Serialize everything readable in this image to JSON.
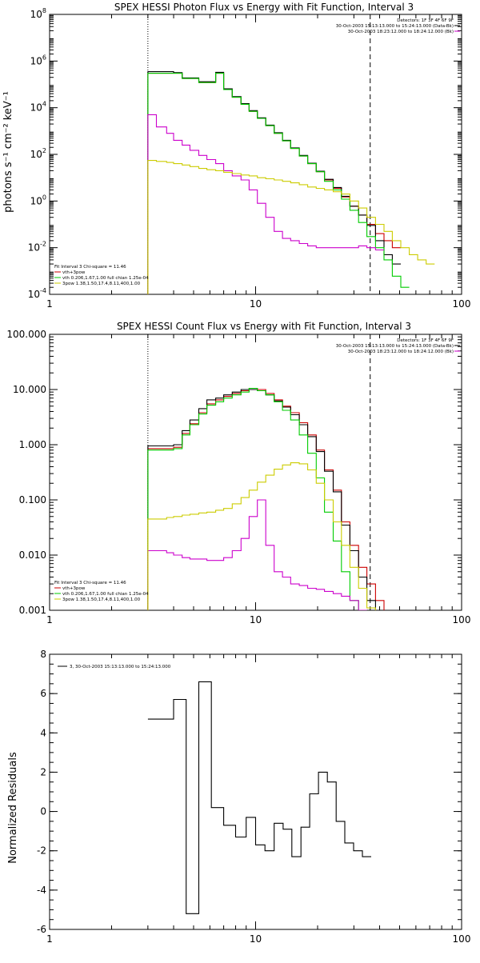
{
  "chart_data": [
    {
      "type": "line",
      "title": "SPEX HESSI Photon Flux vs Energy with Fit Function, Interval 3",
      "ylabel": "photons s⁻¹ cm⁻² keV⁻¹",
      "xlabel": "",
      "xscale": "log",
      "yscale": "log",
      "xlim": [
        1,
        100
      ],
      "ylim": [
        0.0001,
        100000000
      ],
      "xticks": [
        {
          "v": 1,
          "label": "1"
        },
        {
          "v": 10,
          "label": "10"
        },
        {
          "v": 100,
          "label": "100"
        }
      ],
      "yticks": [
        {
          "base": "10",
          "exp": "-4",
          "v": 0.0001
        },
        {
          "base": "10",
          "exp": "-2",
          "v": 0.01
        },
        {
          "base": "10",
          "exp": "0",
          "v": 1
        },
        {
          "base": "10",
          "exp": "2",
          "v": 100
        },
        {
          "base": "10",
          "exp": "4",
          "v": 10000
        },
        {
          "base": "10",
          "exp": "6",
          "v": 1000000
        },
        {
          "base": "10",
          "exp": "8",
          "v": 100000000
        }
      ],
      "vlines": [
        {
          "x": 3,
          "style": "dotted",
          "color": "#000000"
        },
        {
          "x": 36,
          "style": "dashed",
          "color": "#000000"
        }
      ],
      "legend_top": [
        {
          "text": "Detectors: 1F 3F 4F 6F 9F",
          "color": ""
        },
        {
          "text": "30-Oct-2003 15:13:13.000 to 15:24:13.000 (Data-Bk)",
          "color": "#000000"
        },
        {
          "text": "30-Oct-2003 18:23:12.000 to 18:24:12.000 (Bk)",
          "color": "#cc00cc"
        }
      ],
      "legend_bottom": [
        {
          "text": "Fit Interval 3    Chi-square = 11.46",
          "color": ""
        },
        {
          "text": "vth+3pow",
          "color": "#cc0000"
        },
        {
          "text": "vth 0.206,1.67,1.00  full chian 1.25e-04",
          "color": "#00cc00"
        },
        {
          "text": "3pow 1.38,1.50,17.4,8.11,400,1.00",
          "color": "#cccc00"
        }
      ],
      "edges": [
        3,
        3.3,
        3.7,
        4,
        4.4,
        4.8,
        5.3,
        5.8,
        6.4,
        7,
        7.7,
        8.5,
        9.3,
        10.2,
        11.2,
        12.3,
        13.5,
        14.8,
        16.3,
        17.9,
        19.7,
        21.6,
        23.8,
        26.1,
        28.7,
        31.6,
        34.7,
        38.2,
        42,
        46.1,
        50.7,
        55.7,
        61.2,
        67.3,
        74
      ],
      "series": [
        {
          "name": "vth+3pow",
          "color": "#cc0000",
          "values": [
            300000,
            300000,
            300000,
            300000,
            180000,
            180000,
            120000,
            120000,
            300000,
            60000,
            28000,
            14000,
            7000,
            3500,
            1700,
            800,
            380,
            180,
            85,
            40,
            18,
            8,
            3.5,
            1.5,
            0.6,
            0.25,
            0.1,
            0.04,
            0.02,
            0.01
          ]
        },
        {
          "name": "Data-Bk",
          "color": "#000000",
          "values": [
            350000,
            350000,
            350000,
            320000,
            190000,
            190000,
            130000,
            130000,
            330000,
            65000,
            30000,
            15000,
            7500,
            3700,
            1800,
            850,
            400,
            190,
            90,
            42,
            19,
            8.5,
            3.8,
            1.6,
            0.6,
            0.25,
            0.09,
            0.02,
            0.005,
            0.002
          ]
        },
        {
          "name": "vth",
          "color": "#00cc00",
          "values": [
            300000,
            300000,
            300000,
            300000,
            180000,
            180000,
            120000,
            120000,
            300000,
            60000,
            28000,
            14000,
            7000,
            3500,
            1700,
            800,
            380,
            180,
            85,
            40,
            18,
            7,
            3,
            1.2,
            0.4,
            0.12,
            0.03,
            0.01,
            0.003,
            0.0006,
            0.0002
          ]
        },
        {
          "name": "Bk",
          "color": "#cc00cc",
          "values": [
            5000,
            1500,
            800,
            400,
            250,
            150,
            90,
            60,
            40,
            20,
            12,
            8,
            3,
            0.8,
            0.2,
            0.05,
            0.025,
            0.02,
            0.015,
            0.012,
            0.01,
            0.01,
            0.01,
            0.01,
            0.01,
            0.012,
            0.01,
            0.008
          ]
        },
        {
          "name": "3pow",
          "color": "#cccc00",
          "values": [
            55,
            50,
            45,
            40,
            35,
            30,
            25,
            22,
            20,
            17,
            15,
            13,
            12,
            10,
            9,
            8,
            7,
            6,
            5,
            4,
            3.5,
            3,
            2.5,
            2,
            1,
            0.5,
            0.2,
            0.1,
            0.05,
            0.02,
            0.01,
            0.005,
            0.003,
            0.002
          ]
        }
      ]
    },
    {
      "type": "line",
      "title": "SPEX HESSI Count Flux vs Energy with Fit Function, Interval 3",
      "ylabel": "",
      "xlabel": "",
      "xscale": "log",
      "yscale": "log",
      "xlim": [
        1,
        100
      ],
      "ylim": [
        0.001,
        100
      ],
      "xticks": [
        {
          "v": 1,
          "label": "1"
        },
        {
          "v": 10,
          "label": "10"
        },
        {
          "v": 100,
          "label": "100"
        }
      ],
      "yticks": [
        {
          "label": "0.001",
          "v": 0.001
        },
        {
          "label": "0.010",
          "v": 0.01
        },
        {
          "label": "0.100",
          "v": 0.1
        },
        {
          "label": "1.000",
          "v": 1
        },
        {
          "label": "10.000",
          "v": 10
        },
        {
          "label": "100.000",
          "v": 100
        }
      ],
      "vlines": [
        {
          "x": 3,
          "style": "dotted",
          "color": "#000000"
        },
        {
          "x": 36,
          "style": "dashed",
          "color": "#000000"
        }
      ],
      "legend_top": [
        {
          "text": "Detectors: 1F 3F 4F 6F 9F",
          "color": ""
        },
        {
          "text": "30-Oct-2003 15:13:13.000 to 15:24:13.000 (Data-Bk)",
          "color": "#000000"
        },
        {
          "text": "30-Oct-2003 18:23:12.000 to 18:24:12.000 (Bk)",
          "color": "#cc00cc"
        }
      ],
      "legend_bottom": [
        {
          "text": "Fit Interval 3    Chi-square = 11.46",
          "color": ""
        },
        {
          "text": "vth+3pow",
          "color": "#cc0000"
        },
        {
          "text": "vth 0.206,1.67,1.00  full chian 1.25e-04",
          "color": "#00cc00"
        },
        {
          "text": "3pow 1.38,1.50,17.4,8.11,400,1.00",
          "color": "#cccc00"
        }
      ],
      "edges": [
        3,
        3.3,
        3.7,
        4,
        4.4,
        4.8,
        5.3,
        5.8,
        6.4,
        7,
        7.7,
        8.5,
        9.3,
        10.2,
        11.2,
        12.3,
        13.5,
        14.8,
        16.3,
        17.9,
        19.7,
        21.6,
        23.8,
        26.1,
        28.7,
        31.6,
        34.7,
        38.2,
        42,
        46.1
      ],
      "series": [
        {
          "name": "vth+3pow",
          "color": "#cc0000",
          "values": [
            0.85,
            0.85,
            0.85,
            0.9,
            1.6,
            2.4,
            3.8,
            5.5,
            6.5,
            7.5,
            8.5,
            9.5,
            10.5,
            10,
            8.5,
            6.5,
            5,
            3.8,
            2.5,
            1.5,
            0.8,
            0.35,
            0.15,
            0.04,
            0.015,
            0.006,
            0.003,
            0.0015,
            0.0008
          ]
        },
        {
          "name": "Data-Bk",
          "color": "#000000",
          "values": [
            0.95,
            0.95,
            0.95,
            1.0,
            1.8,
            2.8,
            4.5,
            6.5,
            7.0,
            8.0,
            9.0,
            10.0,
            10.0,
            9.5,
            8.0,
            6.2,
            4.8,
            3.5,
            2.3,
            1.4,
            0.75,
            0.33,
            0.14,
            0.035,
            0.012,
            0.004,
            0.0015,
            0.0008
          ]
        },
        {
          "name": "vth",
          "color": "#00cc00",
          "values": [
            0.8,
            0.8,
            0.8,
            0.85,
            1.5,
            2.3,
            3.6,
            5.2,
            6.0,
            7.0,
            8.0,
            9.0,
            10.5,
            9.5,
            8.0,
            6.0,
            4.2,
            2.8,
            1.5,
            0.7,
            0.25,
            0.06,
            0.018,
            0.005,
            0.0015,
            0.0005
          ]
        },
        {
          "name": "Bk",
          "color": "#cc00cc",
          "values": [
            0.012,
            0.012,
            0.011,
            0.01,
            0.009,
            0.0085,
            0.0085,
            0.008,
            0.008,
            0.009,
            0.012,
            0.02,
            0.05,
            0.1,
            0.015,
            0.005,
            0.004,
            0.003,
            0.0028,
            0.0025,
            0.0024,
            0.0022,
            0.002,
            0.0018,
            0.0015,
            0.001
          ]
        },
        {
          "name": "3pow",
          "color": "#cccc00",
          "values": [
            0.045,
            0.045,
            0.048,
            0.05,
            0.053,
            0.055,
            0.058,
            0.06,
            0.065,
            0.07,
            0.085,
            0.11,
            0.15,
            0.21,
            0.28,
            0.36,
            0.43,
            0.47,
            0.45,
            0.35,
            0.2,
            0.1,
            0.04,
            0.015,
            0.006,
            0.0025,
            0.0011,
            0.0005
          ]
        }
      ]
    },
    {
      "type": "line",
      "title": "",
      "ylabel": "Normalized Residuals",
      "xlabel": "",
      "xscale": "log",
      "yscale": "linear",
      "xlim": [
        1,
        100
      ],
      "ylim": [
        -6,
        8
      ],
      "xticks": [
        {
          "v": 1,
          "label": "1"
        },
        {
          "v": 10,
          "label": "10"
        },
        {
          "v": 100,
          "label": "100"
        }
      ],
      "yticks": [
        {
          "label": "-6",
          "v": -6
        },
        {
          "label": "-4",
          "v": -4
        },
        {
          "label": "-2",
          "v": -2
        },
        {
          "label": "0",
          "v": 0
        },
        {
          "label": "2",
          "v": 2
        },
        {
          "label": "4",
          "v": 4
        },
        {
          "label": "6",
          "v": 6
        },
        {
          "label": "8",
          "v": 8
        }
      ],
      "legend_top": [
        {
          "text": "3, 30-Oct-2003 15:13:13.000 to 15:24:13.000",
          "color": "#000000"
        }
      ],
      "edges": [
        3,
        4,
        4.6,
        5.3,
        6.1,
        7,
        8,
        9,
        10,
        11.1,
        12.3,
        13.6,
        15,
        16.6,
        18.3,
        20.2,
        22.3,
        24.6,
        27.1,
        29.9,
        33,
        36.4
      ],
      "series": [
        {
          "name": "3, 30-Oct-2003 15:13:13.000 to 15:24:13.000",
          "color": "#000000",
          "values": [
            4.7,
            5.7,
            -5.2,
            6.6,
            0.2,
            -0.7,
            -1.3,
            -0.3,
            -1.7,
            -2.0,
            -0.6,
            -0.9,
            -2.3,
            -0.8,
            0.9,
            2.0,
            1.5,
            -0.5,
            -1.6,
            -2.0,
            -2.3
          ]
        }
      ]
    }
  ]
}
